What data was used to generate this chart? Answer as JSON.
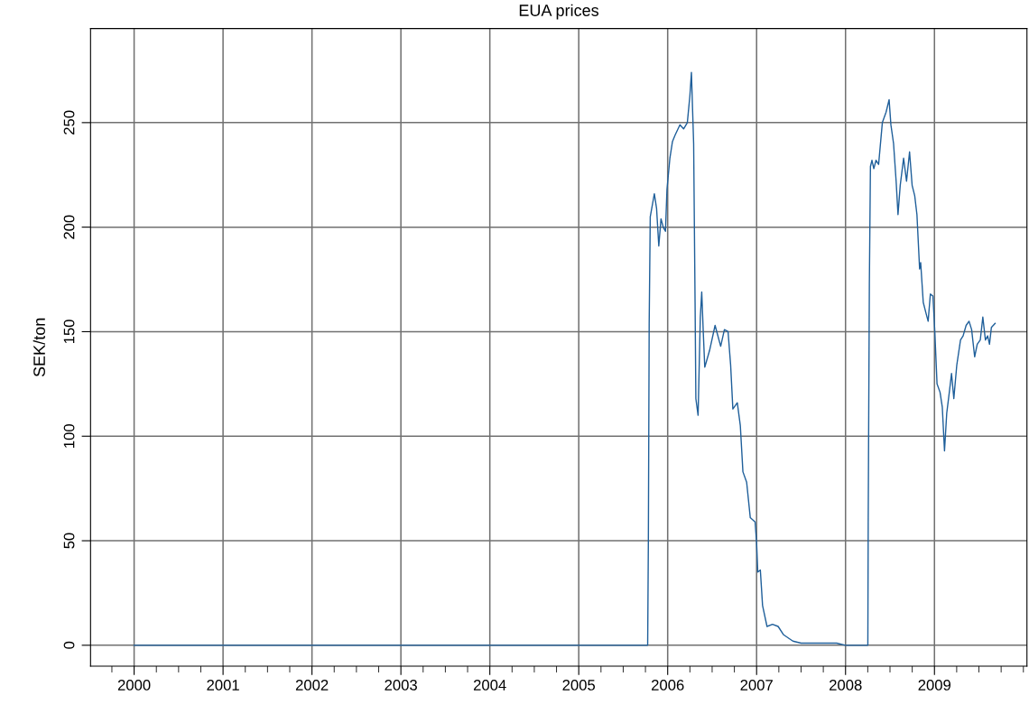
{
  "chart_data": {
    "type": "line",
    "title": "EUA prices",
    "ylabel": "SEK/ton",
    "x": [
      2000.0,
      2005.775,
      2005.783,
      2005.792,
      2005.804,
      2005.85,
      2005.875,
      2005.9,
      2005.925,
      2005.95,
      2005.975,
      2005.992,
      2006.025,
      2006.054,
      2006.083,
      2006.138,
      2006.179,
      2006.221,
      2006.25,
      2006.267,
      2006.292,
      2006.308,
      2006.317,
      2006.342,
      2006.367,
      2006.383,
      2006.4,
      2006.417,
      2006.471,
      2006.533,
      2006.596,
      2006.638,
      2006.679,
      2006.708,
      2006.733,
      2006.783,
      2006.817,
      2006.846,
      2006.888,
      2006.929,
      2006.983,
      2007.0,
      2007.013,
      2007.042,
      2007.067,
      2007.117,
      2007.179,
      2007.242,
      2007.304,
      2007.408,
      2007.5,
      2007.9,
      2008.0,
      2008.251,
      2008.255,
      2008.268,
      2008.28,
      2008.297,
      2008.318,
      2008.343,
      2008.372,
      2008.414,
      2008.456,
      2008.49,
      2008.51,
      2008.54,
      2008.569,
      2008.59,
      2008.615,
      2008.653,
      2008.686,
      2008.72,
      2008.749,
      2008.778,
      2008.803,
      2008.833,
      2008.845,
      2008.874,
      2008.904,
      2008.929,
      2008.954,
      2008.983,
      2009.004,
      2009.029,
      2009.063,
      2009.088,
      2009.113,
      2009.138,
      2009.167,
      2009.192,
      2009.218,
      2009.251,
      2009.293,
      2009.322,
      2009.356,
      2009.389,
      2009.418,
      2009.452,
      2009.481,
      2009.515,
      2009.544,
      2009.573,
      2009.598,
      2009.619,
      2009.64,
      2009.682
    ],
    "series": [
      {
        "color": "#1f5f9a",
        "values": [
          0,
          0,
          51,
          154,
          205,
          216,
          209,
          191,
          204,
          200,
          198,
          218,
          233,
          241,
          244,
          249,
          247,
          250,
          263,
          274,
          240,
          164,
          118,
          110,
          157,
          169,
          150,
          133,
          141,
          153,
          143,
          151,
          150,
          134,
          113,
          116,
          105,
          83,
          78,
          61,
          59,
          49,
          35,
          36,
          19,
          9,
          10,
          9,
          5,
          2,
          1,
          1,
          0,
          0,
          58,
          173,
          229,
          232,
          228,
          232,
          230,
          250,
          255,
          261,
          249,
          240,
          222,
          206,
          220,
          233,
          222,
          236,
          220,
          215,
          206,
          180,
          183,
          164,
          159,
          155,
          168,
          167,
          150,
          125,
          121,
          114,
          93,
          111,
          121,
          130,
          118,
          134,
          146,
          148,
          153,
          155,
          151,
          138,
          144,
          146,
          157,
          146,
          148,
          144,
          152,
          154
        ]
      }
    ],
    "xlim": [
      1999.51,
      2010.04
    ],
    "xticks": [
      2000,
      2001,
      2002,
      2003,
      2004,
      2005,
      2006,
      2007,
      2008,
      2009
    ],
    "ylim": [
      -10,
      295
    ],
    "yticks": [
      0,
      50,
      100,
      150,
      200,
      250
    ],
    "grid": true,
    "marker": "none",
    "line_style": "solid"
  }
}
